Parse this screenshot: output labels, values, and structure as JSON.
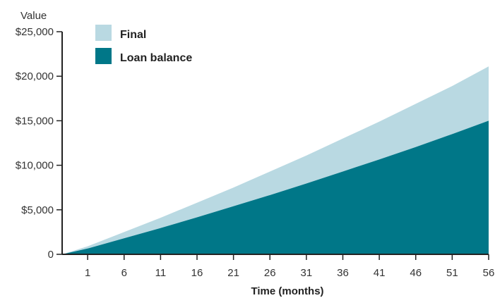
{
  "chart_data": {
    "type": "area",
    "ylabel": "Value",
    "xlabel": "Time (months)",
    "x_ticks": [
      "1",
      "6",
      "11",
      "16",
      "21",
      "26",
      "31",
      "36",
      "41",
      "46",
      "51",
      "56"
    ],
    "y_ticks": [
      "0",
      "$5,000",
      "$10,000",
      "$15,000",
      "$20,000",
      "$25,000"
    ],
    "xlim": [
      -2.5,
      56
    ],
    "ylim": [
      0,
      25000
    ],
    "legend_placement": "top-left",
    "x": [
      -2.5,
      1,
      6,
      11,
      16,
      21,
      26,
      31,
      36,
      41,
      46,
      51,
      56
    ],
    "series": [
      {
        "name": "Final",
        "color": "#b9d9e2",
        "values": [
          0,
          900,
          2500,
          4100,
          5800,
          7500,
          9300,
          11100,
          13000,
          14900,
          16900,
          18900,
          21100
        ]
      },
      {
        "name": "Loan balance",
        "color": "#007788",
        "values": [
          0,
          650,
          1800,
          2950,
          4150,
          5400,
          6650,
          7950,
          9300,
          10650,
          12050,
          13500,
          15000
        ]
      }
    ],
    "grid": false
  }
}
